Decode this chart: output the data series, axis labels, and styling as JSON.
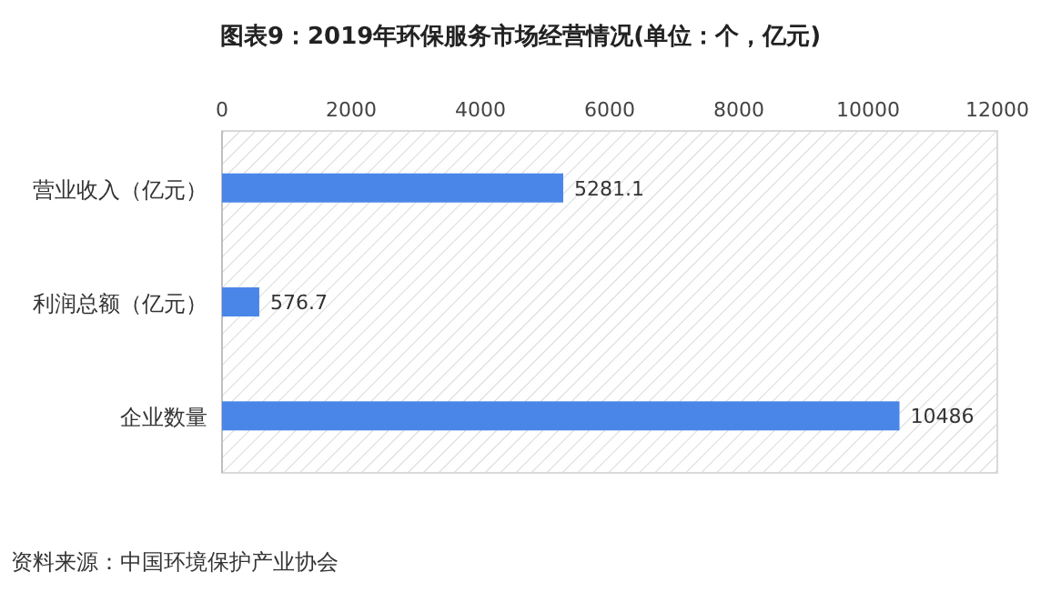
{
  "chart_data": {
    "type": "bar",
    "orientation": "horizontal",
    "title": "图表9：2019年环保服务市场经营情况(单位：个，亿元)",
    "categories": [
      "营业收入（亿元）",
      "利润总额（亿元）",
      "企业数量"
    ],
    "values": [
      5281.1,
      576.7,
      10486
    ],
    "color": "#4a86e8",
    "xlim": [
      0,
      12000
    ],
    "xticks": [
      0,
      2000,
      4000,
      6000,
      8000,
      10000,
      12000
    ],
    "data_labels": true,
    "annotations": [
      "资料来源：中国环境保护产业协会"
    ]
  }
}
